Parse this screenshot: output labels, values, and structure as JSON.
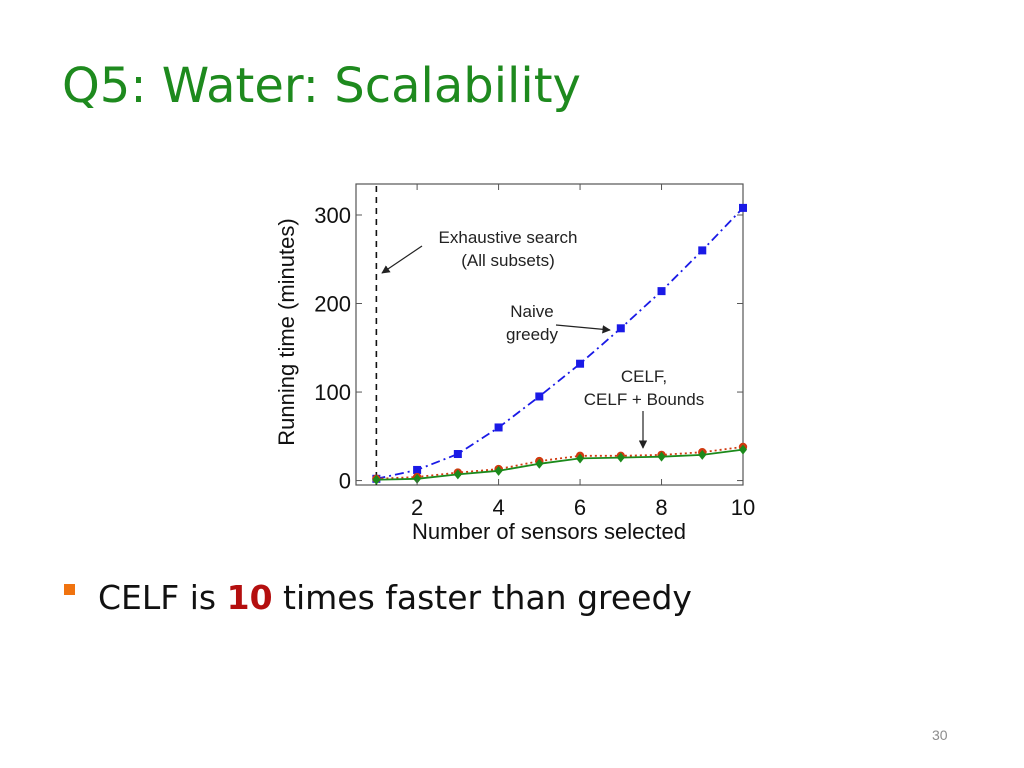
{
  "slide": {
    "title": "Q5: Water: Scalability",
    "bullet": {
      "prefix": "CELF is ",
      "emphasis": "10",
      "suffix": " times faster than greedy"
    },
    "page_number": "30",
    "colors": {
      "title": "#1e8a1e",
      "bullet_marker": "#f0730f",
      "emphasis": "#b40f0f"
    }
  },
  "chart_data": {
    "type": "line",
    "title": "",
    "xlabel": "Number of sensors selected",
    "ylabel": "Running time (minutes)",
    "xlim": [
      0.5,
      10
    ],
    "ylim": [
      -5,
      335
    ],
    "xticks": [
      2,
      4,
      6,
      8,
      10
    ],
    "yticks": [
      0,
      100,
      200,
      300
    ],
    "grid": false,
    "legend": "none",
    "x": [
      1,
      2,
      3,
      4,
      5,
      6,
      7,
      8,
      9,
      10
    ],
    "series": [
      {
        "name": "",
        "values": [
          2,
          12,
          30,
          60,
          95,
          132,
          172,
          214,
          260,
          308
        ],
        "color": "#1a1ae6",
        "marker": "square",
        "linestyle": "dash-dot"
      },
      {
        "name": "",
        "values": [
          2,
          4,
          9,
          13,
          22,
          28,
          28,
          29,
          32,
          38
        ],
        "color": "#d03a10",
        "marker": "circle",
        "linestyle": "dotted"
      },
      {
        "name": "",
        "values": [
          1,
          2,
          7,
          11,
          19,
          25,
          26,
          27,
          29,
          35
        ],
        "color": "#1b8a1b",
        "marker": "diamond",
        "linestyle": "solid"
      }
    ],
    "reference_line": {
      "x": 1,
      "color": "#111111",
      "linestyle": "dashed"
    },
    "annotations": [
      {
        "lines": [
          "Exhaustive search",
          "(All subsets)"
        ]
      },
      {
        "lines": [
          "Naive",
          "greedy"
        ]
      },
      {
        "lines": [
          "CELF,",
          "CELF + Bounds"
        ]
      }
    ]
  }
}
